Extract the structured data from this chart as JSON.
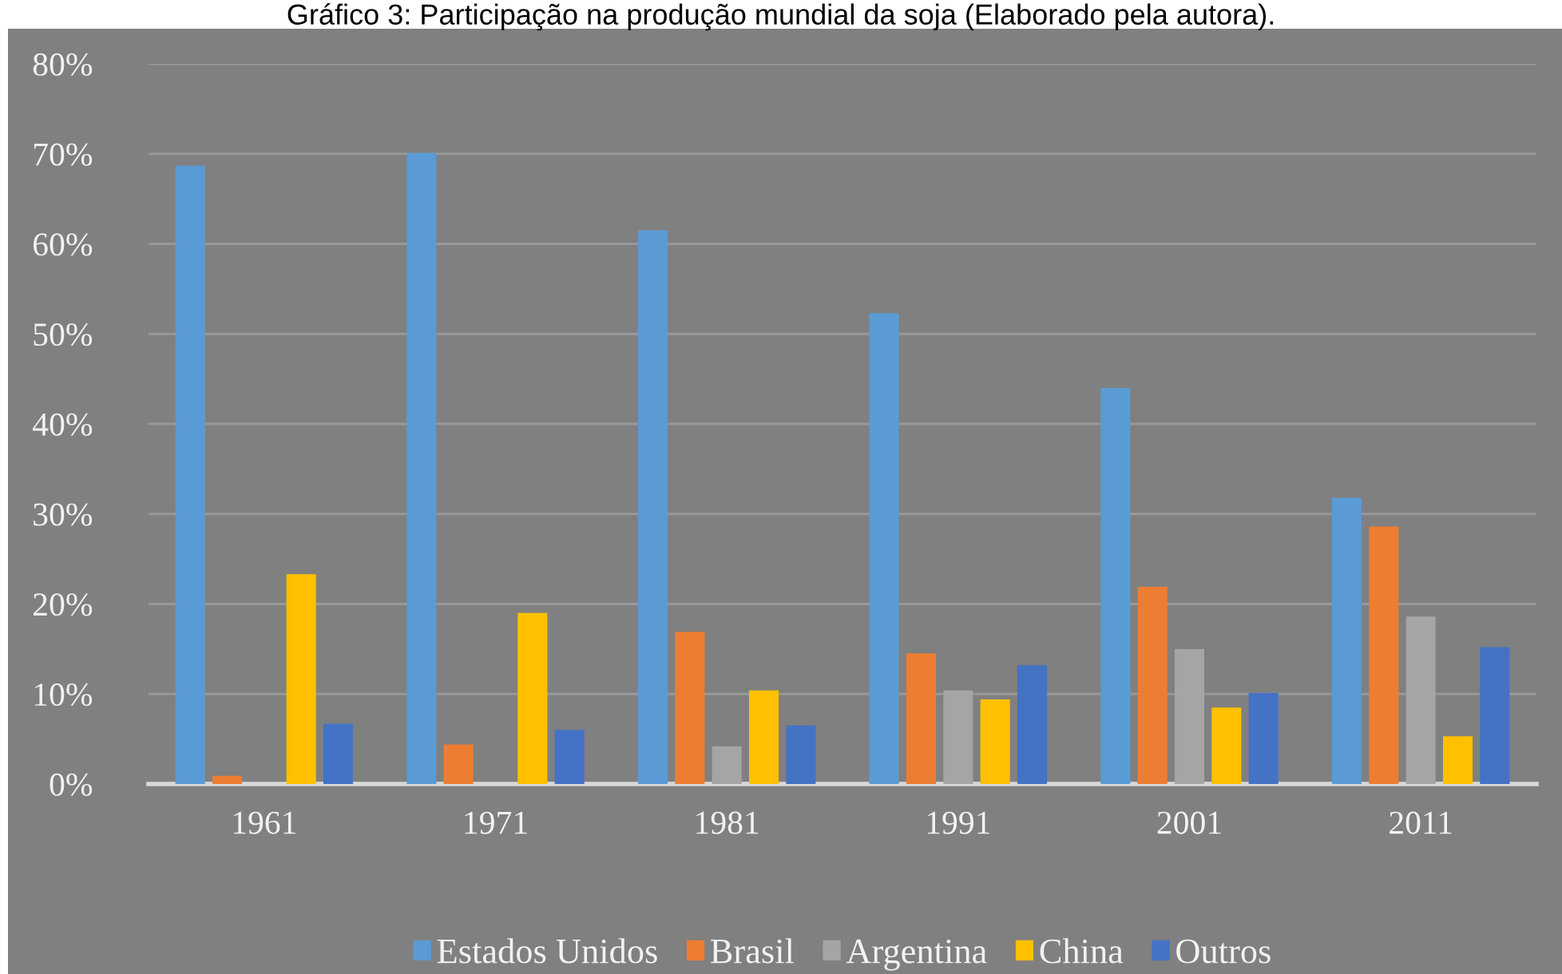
{
  "chart_data": {
    "type": "bar",
    "title": "Gráfico 3: Participação na produção mundial da soja (Elaborado pela autora).",
    "categories": [
      "1961",
      "1971",
      "1981",
      "1991",
      "2001",
      "2011"
    ],
    "series": [
      {
        "name": "Estados Unidos",
        "color": "#5b9bd5",
        "values": [
          68.7,
          70.1,
          61.5,
          52.3,
          44.0,
          31.8
        ]
      },
      {
        "name": "Brasil",
        "color": "#ed7d31",
        "values": [
          0.9,
          4.4,
          16.9,
          14.5,
          21.9,
          28.6
        ]
      },
      {
        "name": "Argentina",
        "color": "#a5a5a5",
        "values": [
          null,
          null,
          4.2,
          10.4,
          15.0,
          18.6
        ]
      },
      {
        "name": "China",
        "color": "#ffc000",
        "values": [
          23.3,
          19.0,
          10.4,
          9.4,
          8.5,
          5.3
        ]
      },
      {
        "name": "Outros",
        "color": "#4472c4",
        "values": [
          6.7,
          6.0,
          6.5,
          13.2,
          10.1,
          15.2
        ]
      }
    ],
    "ylim": [
      0,
      80
    ],
    "yticks": [
      {
        "value": 0,
        "label": "0%"
      },
      {
        "value": 10,
        "label": "10%"
      },
      {
        "value": 20,
        "label": "20%"
      },
      {
        "value": 30,
        "label": "30%"
      },
      {
        "value": 40,
        "label": "40%"
      },
      {
        "value": 50,
        "label": "50%"
      },
      {
        "value": 60,
        "label": "60%"
      },
      {
        "value": 70,
        "label": "70%"
      },
      {
        "value": 80,
        "label": "80%"
      }
    ],
    "grid": "y",
    "legend": "bottom"
  }
}
